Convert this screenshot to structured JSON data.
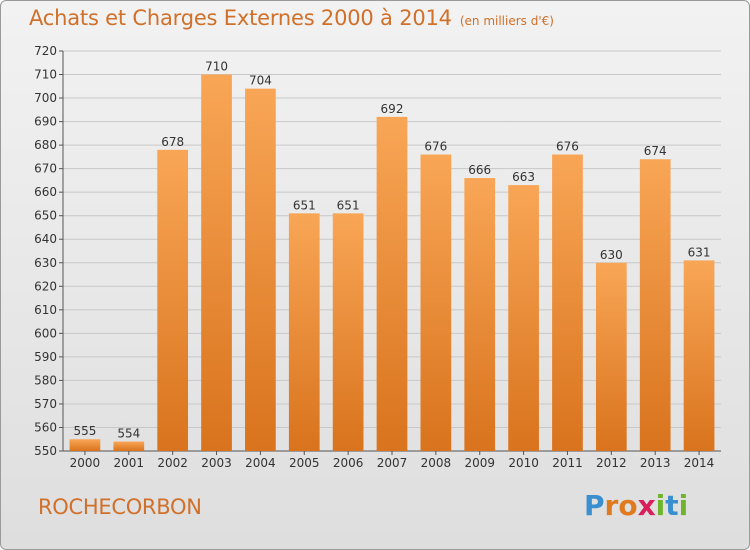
{
  "header": {
    "title": "Achats et Charges Externes 2000 à 2014",
    "subtitle": "(en milliers d'€)"
  },
  "footer": {
    "place": "ROCHECORBON",
    "logo": {
      "text": "Proxiti",
      "letters": [
        {
          "ch": "P",
          "color": "#3a8fd0"
        },
        {
          "ch": "r",
          "color": "#e07a1e"
        },
        {
          "ch": "o",
          "color": "#e07a1e"
        },
        {
          "ch": "x",
          "color": "#d81e5b"
        },
        {
          "ch": "i",
          "color": "#6fb52c"
        },
        {
          "ch": "t",
          "color": "#3a8fd0"
        },
        {
          "ch": "i",
          "color": "#6fb52c"
        }
      ]
    }
  },
  "colors": {
    "bar_light": "#f8a656",
    "bar_dark": "#d9731d",
    "grid": "#c8c8c8",
    "accent_text": "#d0702a"
  },
  "chart_data": {
    "type": "bar",
    "title": "Achats et Charges Externes 2000 à 2014",
    "subtitle": "(en milliers d'€)",
    "xlabel": "",
    "ylabel": "",
    "categories": [
      "2000",
      "2001",
      "2002",
      "2003",
      "2004",
      "2005",
      "2006",
      "2007",
      "2008",
      "2009",
      "2010",
      "2011",
      "2012",
      "2013",
      "2014"
    ],
    "values": [
      555,
      554,
      678,
      710,
      704,
      651,
      651,
      692,
      676,
      666,
      663,
      676,
      630,
      674,
      631
    ],
    "ylim": [
      550,
      720
    ],
    "yticks": [
      550,
      560,
      570,
      580,
      590,
      600,
      610,
      620,
      630,
      640,
      650,
      660,
      670,
      680,
      690,
      700,
      710,
      720
    ],
    "grid": true,
    "data_labels": true
  }
}
